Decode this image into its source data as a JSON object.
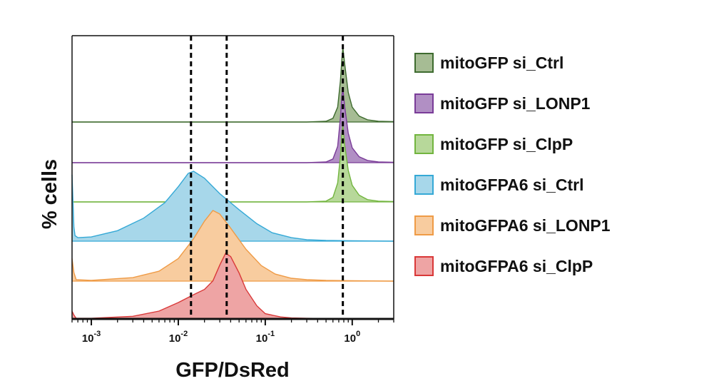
{
  "chart_data": {
    "type": "area",
    "chart_kind": "stacked flow-cytometry histograms (offset ridgeline)",
    "xlabel": "GFP/DsRed",
    "ylabel": "% cells",
    "x_scale": "log10",
    "xlim": [
      0.0006,
      3.0
    ],
    "x_ticks": [
      {
        "value": 0.001,
        "base": "10",
        "exp": "-3"
      },
      {
        "value": 0.01,
        "base": "10",
        "exp": "-2"
      },
      {
        "value": 0.1,
        "base": "10",
        "exp": "-1"
      },
      {
        "value": 1.0,
        "base": "10",
        "exp": "0"
      }
    ],
    "reference_lines_x": [
      0.014,
      0.036,
      0.78
    ],
    "grid": false,
    "legend_position": "right",
    "series": [
      {
        "name": "mitoGFP si_Ctrl",
        "fill": "#a6bc94",
        "stroke": "#3e6b2f",
        "x": [
          0.0006,
          0.3,
          0.5,
          0.6,
          0.68,
          0.73,
          0.76,
          0.78,
          0.82,
          0.9,
          1.0,
          1.2,
          1.5,
          2.0,
          3.0
        ],
        "y": [
          0,
          0,
          0.01,
          0.05,
          0.2,
          0.55,
          0.85,
          1.0,
          0.78,
          0.4,
          0.2,
          0.08,
          0.03,
          0.01,
          0.005
        ]
      },
      {
        "name": "mitoGFP si_LONP1",
        "fill": "#b18fc4",
        "stroke": "#7a3c98",
        "x": [
          0.0006,
          0.3,
          0.5,
          0.6,
          0.68,
          0.73,
          0.76,
          0.78,
          0.82,
          0.9,
          1.0,
          1.2,
          1.5,
          2.0,
          3.0
        ],
        "y": [
          0,
          0,
          0.01,
          0.05,
          0.22,
          0.6,
          0.9,
          1.0,
          0.75,
          0.4,
          0.2,
          0.08,
          0.03,
          0.01,
          0.005
        ]
      },
      {
        "name": "mitoGFP si_ClpP",
        "fill": "#b7d89a",
        "stroke": "#72b53f",
        "x": [
          0.0006,
          0.3,
          0.5,
          0.6,
          0.68,
          0.73,
          0.76,
          0.78,
          0.82,
          0.9,
          1.0,
          1.2,
          1.5,
          2.0,
          3.0
        ],
        "y": [
          0,
          0,
          0.01,
          0.06,
          0.25,
          0.6,
          0.9,
          1.0,
          0.75,
          0.42,
          0.22,
          0.09,
          0.03,
          0.01,
          0.005
        ]
      },
      {
        "name": "mitoGFPA6 si_Ctrl",
        "fill": "#a7d7ea",
        "stroke": "#35a9d6",
        "x": [
          0.0006,
          0.00063,
          0.00065,
          0.0007,
          0.001,
          0.002,
          0.004,
          0.007,
          0.01,
          0.013,
          0.015,
          0.02,
          0.03,
          0.05,
          0.08,
          0.12,
          0.2,
          0.3,
          0.5,
          1.0,
          3.0
        ],
        "y": [
          0.95,
          0.2,
          0.08,
          0.05,
          0.06,
          0.15,
          0.33,
          0.55,
          0.78,
          0.97,
          1.0,
          0.9,
          0.68,
          0.45,
          0.25,
          0.12,
          0.05,
          0.02,
          0.01,
          0.005,
          0.0
        ]
      },
      {
        "name": "mitoGFPA6 si_LONP1",
        "fill": "#f8cc9f",
        "stroke": "#ef9b46",
        "x": [
          0.0006,
          0.00063,
          0.00067,
          0.001,
          0.003,
          0.006,
          0.01,
          0.015,
          0.02,
          0.025,
          0.03,
          0.04,
          0.06,
          0.09,
          0.13,
          0.2,
          0.3,
          0.5,
          1.0,
          3.0
        ],
        "y": [
          0.32,
          0.12,
          0.02,
          0.01,
          0.05,
          0.14,
          0.32,
          0.6,
          0.85,
          1.0,
          0.95,
          0.75,
          0.45,
          0.22,
          0.1,
          0.04,
          0.02,
          0.01,
          0.005,
          0.0
        ]
      },
      {
        "name": "mitoGFPA6 si_ClpP",
        "fill": "#eea4a4",
        "stroke": "#d93838",
        "x": [
          0.0006,
          0.00063,
          0.00067,
          0.001,
          0.003,
          0.006,
          0.01,
          0.015,
          0.02,
          0.025,
          0.03,
          0.035,
          0.04,
          0.05,
          0.06,
          0.08,
          0.1,
          0.15,
          0.2,
          0.3,
          0.5,
          1.0,
          3.0
        ],
        "y": [
          0.12,
          0.06,
          0.01,
          0.01,
          0.04,
          0.12,
          0.25,
          0.37,
          0.45,
          0.58,
          0.82,
          1.0,
          0.95,
          0.7,
          0.45,
          0.2,
          0.08,
          0.03,
          0.015,
          0.01,
          0.005,
          0.002,
          0.0
        ]
      }
    ]
  }
}
